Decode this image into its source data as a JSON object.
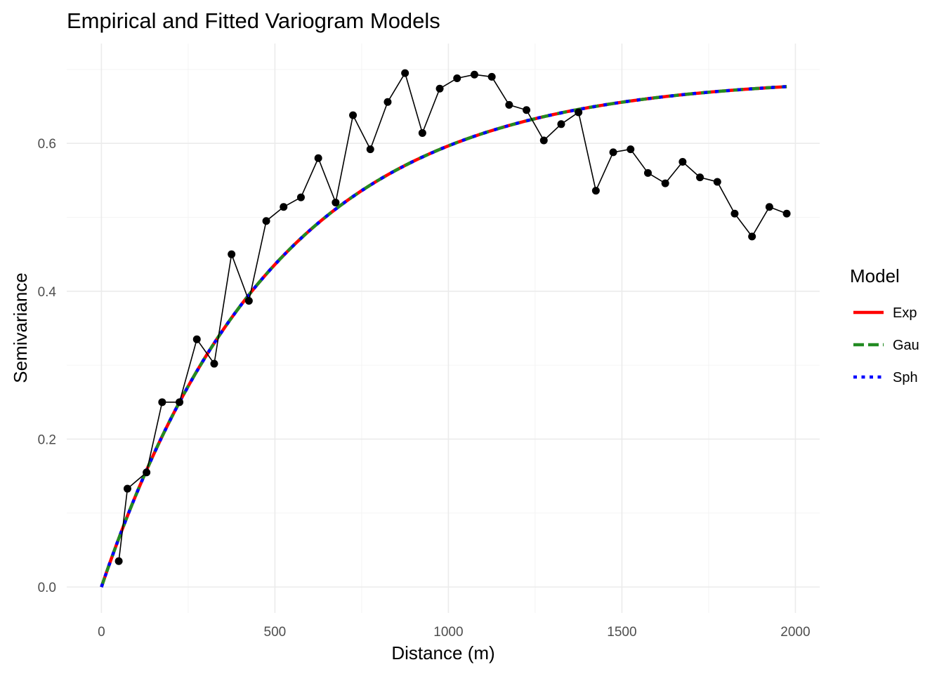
{
  "chart_data": {
    "type": "line",
    "title": "Empirical and Fitted Variogram Models",
    "xlabel": "Distance (m)",
    "ylabel": "Semivariance",
    "xlim": [
      -100,
      2070
    ],
    "ylim": [
      -0.035,
      0.735
    ],
    "x_ticks": [
      0,
      500,
      1000,
      1500,
      2000
    ],
    "x_tick_labels": [
      "0",
      "500",
      "1000",
      "1500",
      "2000"
    ],
    "y_ticks": [
      0.0,
      0.2,
      0.4,
      0.6
    ],
    "y_tick_labels": [
      "0.0",
      "0.2",
      "0.4",
      "0.6"
    ],
    "grid": true,
    "legend_position": "right",
    "legend_title": "Model",
    "empirical": {
      "x": [
        50,
        75,
        130,
        175,
        225,
        275,
        325,
        375,
        425,
        475,
        525,
        575,
        625,
        675,
        725,
        775,
        825,
        875,
        925,
        975,
        1025,
        1075,
        1125,
        1175,
        1225,
        1275,
        1325,
        1375,
        1425,
        1475,
        1525,
        1575,
        1625,
        1675,
        1725,
        1775,
        1825,
        1875,
        1925,
        1975
      ],
      "y": [
        0.035,
        0.133,
        0.155,
        0.25,
        0.25,
        0.335,
        0.302,
        0.45,
        0.387,
        0.495,
        0.514,
        0.527,
        0.58,
        0.52,
        0.638,
        0.592,
        0.656,
        0.695,
        0.614,
        0.674,
        0.688,
        0.693,
        0.69,
        0.652,
        0.645,
        0.604,
        0.626,
        0.642,
        0.536,
        0.588,
        0.592,
        0.56,
        0.546,
        0.575,
        0.554,
        0.548,
        0.505,
        0.474,
        0.514,
        0.505
      ],
      "color": "#000000"
    },
    "model_params": {
      "sill": 0.69,
      "range": 500,
      "x_max": 1975
    },
    "series": [
      {
        "name": "Exp",
        "color": "#ff0000",
        "style": "solid"
      },
      {
        "name": "Gau",
        "color": "#228b22",
        "style": "dashed"
      },
      {
        "name": "Sph",
        "color": "#0000ff",
        "style": "dotted"
      }
    ]
  }
}
